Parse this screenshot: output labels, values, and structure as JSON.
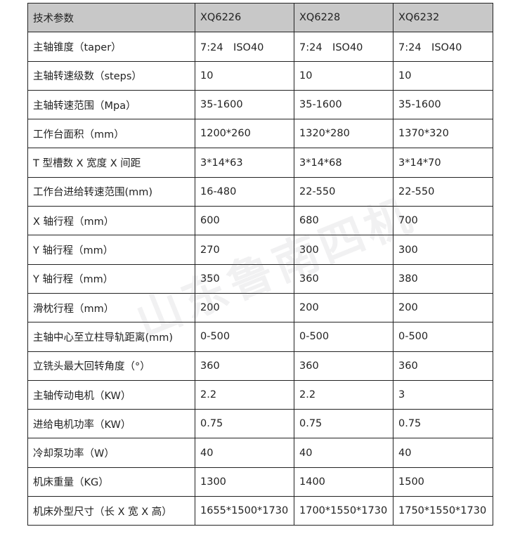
{
  "watermark": "山东鲁南四机",
  "table": {
    "header": [
      "技术参数",
      "XQ6226",
      "XQ6228",
      "XQ6232"
    ],
    "rows": [
      [
        "主轴锥度（taper）",
        "7:24　ISO40",
        "7:24　ISO40",
        "7:24　ISO40"
      ],
      [
        "主轴转速级数（steps）",
        "10",
        "10",
        "10"
      ],
      [
        "主轴转速范围（Mpa）",
        "35-1600",
        "35-1600",
        "35-1600"
      ],
      [
        "工作台面积（mm）",
        "1200*260",
        "1320*280",
        "1370*320"
      ],
      [
        "T 型槽数 X 宽度 X 间距",
        "3*14*63",
        "3*14*68",
        "3*14*70"
      ],
      [
        "工作台进给转速范围(mm)",
        "16-480",
        "22-550",
        "22-550"
      ],
      [
        "X 轴行程（mm）",
        "600",
        "680",
        "700"
      ],
      [
        "Y 轴行程（mm）",
        "270",
        "300",
        "300"
      ],
      [
        "Y 轴行程（mm）",
        "350",
        "360",
        "380"
      ],
      [
        "滑枕行程（mm）",
        "200",
        "200",
        "200"
      ],
      [
        "主轴中心至立柱导轨距离(mm)",
        "0-500",
        "0-500",
        "0-500"
      ],
      [
        "立铣头最大回转角度（°）",
        "360",
        "360",
        "360"
      ],
      [
        "主轴传动电机（KW）",
        "2.2",
        "2.2",
        "3"
      ],
      [
        "进给电机功率（KW）",
        "0.75",
        "0.75",
        "0.75"
      ],
      [
        "冷却泵功率（W）",
        "40",
        "40",
        "40"
      ],
      [
        "机床重量（KG）",
        "1300",
        "1400",
        "1500"
      ],
      [
        "机床外型尺寸（长 X 宽 X 高）",
        "1655*1500*1730",
        "1700*1550*1730",
        "1750*1550*1730"
      ]
    ]
  }
}
